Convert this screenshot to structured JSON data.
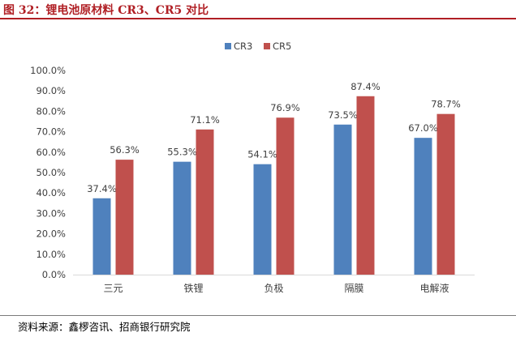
{
  "header": {
    "title": "图 32：锂电池原材料 CR3、CR5 对比"
  },
  "footer": {
    "source": "资料来源：鑫椤咨讯、招商银行研究院"
  },
  "colors": {
    "cr3": "#4f81bd",
    "cr5": "#c0504d",
    "title": "#b01f24",
    "axis": "#d9d9d9",
    "text": "#404040"
  },
  "chart_data": {
    "type": "bar",
    "title": "",
    "xlabel": "",
    "ylabel": "",
    "ylim": [
      0,
      100
    ],
    "yticks": [
      "0.0%",
      "10.0%",
      "20.0%",
      "30.0%",
      "40.0%",
      "50.0%",
      "60.0%",
      "70.0%",
      "80.0%",
      "90.0%",
      "100.0%"
    ],
    "categories": [
      "三元",
      "铁锂",
      "负极",
      "隔膜",
      "电解液"
    ],
    "legend_position": "top-center",
    "series": [
      {
        "name": "CR3",
        "values": [
          37.4,
          55.3,
          54.1,
          73.5,
          67.0
        ],
        "labels": [
          "37.4%",
          "55.3%",
          "54.1%",
          "73.5%",
          "67.0%"
        ]
      },
      {
        "name": "CR5",
        "values": [
          56.3,
          71.1,
          76.9,
          87.4,
          78.7
        ],
        "labels": [
          "56.3%",
          "71.1%",
          "76.9%",
          "87.4%",
          "78.7%"
        ]
      }
    ]
  }
}
